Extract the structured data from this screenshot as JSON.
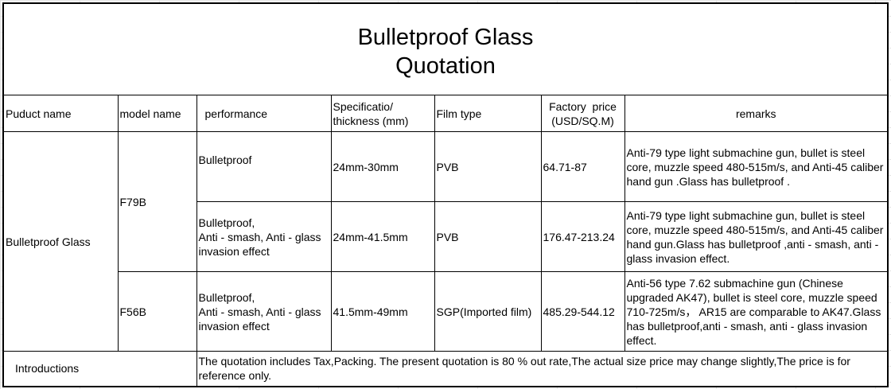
{
  "title_line1": "Bulletproof Glass",
  "title_line2": "Quotation",
  "headers": {
    "product": "Puduct name",
    "model": "model name",
    "performance": "performance",
    "spec_line1": "Specificatio/",
    "spec_line2": "thickness (mm)",
    "film": "Film type",
    "price_line1": "Factory  price",
    "price_line2": "(USD/SQ.M)",
    "remarks": "remarks"
  },
  "product_name": "Bulletproof Glass",
  "rows": [
    {
      "model": "F79B",
      "performance": "Bulletproof",
      "spec": "24mm-30mm",
      "film": "PVB",
      "price": "64.71-87",
      "remarks": "Anti-79 type light submachine gun, bullet is steel core, muzzle speed 480-515m/s, and Anti-45 caliber hand gun .Glass has bulletproof ."
    },
    {
      "model": "F79B",
      "performance": "Bulletproof,\nAnti - smash, Anti - glass invasion effect",
      "spec": "24mm-41.5mm",
      "film": "PVB",
      "price": "176.47-213.24",
      "remarks": "Anti-79 type light submachine gun, bullet is steel core, muzzle speed 480-515m/s,  and Anti-45 caliber hand gun.Glass has bulletproof ,anti - smash, anti - glass invasion effect."
    },
    {
      "model": "F56B",
      "performance": "Bulletproof,\nAnti - smash, Anti - glass invasion effect",
      "spec": "41.5mm-49mm",
      "film": "SGP(Imported film)",
      "price": "485.29-544.12",
      "remarks": "Anti-56 type 7.62 submachine gun (Chinese upgraded AK47), bullet is steel core, muzzle speed 710-725m/s， AR15 are comparable to AK47.Glass has bulletproof,anti - smash, anti - glass invasion effect."
    }
  ],
  "introductions_label": "Introductions",
  "introductions_text": "The quotation includes Tax,Packing. The present quotation is 80 % out rate,The actual size price may change slightly,The price is for reference only."
}
